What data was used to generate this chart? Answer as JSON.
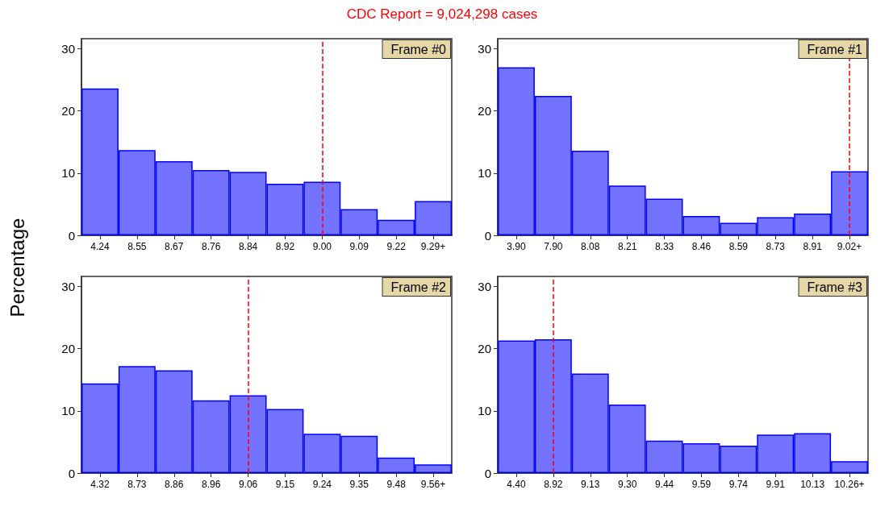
{
  "chart_data": [
    {
      "type": "bar",
      "title": "CDC Report = 9,024,298 cases",
      "ylabel": "Percentage",
      "annotations": [
        "Frame #0"
      ],
      "categories": [
        "4.24",
        "8.55",
        "8.67",
        "8.76",
        "8.84",
        "8.92",
        "9.00",
        "9.09",
        "9.22",
        "9.29+"
      ],
      "series": [
        {
          "color": "#7373ff",
          "values": [
            23.6,
            13.7,
            11.9,
            10.5,
            10.2,
            8.3,
            8.6,
            4.2,
            2.5,
            5.5
          ]
        }
      ],
      "ylim": [
        0,
        31.6
      ],
      "yticks": [
        0,
        10,
        20,
        30
      ],
      "grid": false,
      "ref_lines": [
        {
          "axis": "x",
          "value": "9.00",
          "color": "#ff0000",
          "line_style": "dashed"
        }
      ]
    },
    {
      "type": "bar",
      "annotations": [
        "Frame #1"
      ],
      "categories": [
        "3.90",
        "7.90",
        "8.08",
        "8.21",
        "8.33",
        "8.46",
        "8.59",
        "8.73",
        "8.91",
        "9.02+"
      ],
      "series": [
        {
          "color": "#7373ff",
          "values": [
            27.0,
            22.4,
            13.6,
            8.0,
            5.9,
            3.1,
            2.0,
            2.9,
            3.5,
            10.3
          ]
        }
      ],
      "ylim": [
        0,
        31.6
      ],
      "yticks": [
        0,
        10,
        20,
        30
      ],
      "grid": false,
      "ref_lines": [
        {
          "axis": "x",
          "value": "9.02+",
          "color": "#ff0000",
          "line_style": "dashed"
        }
      ]
    },
    {
      "type": "bar",
      "annotations": [
        "Frame #2"
      ],
      "categories": [
        "4.32",
        "8.73",
        "8.86",
        "8.96",
        "9.06",
        "9.15",
        "9.24",
        "9.35",
        "9.48",
        "9.56+"
      ],
      "series": [
        {
          "color": "#7373ff",
          "values": [
            14.4,
            17.2,
            16.5,
            11.7,
            12.5,
            10.3,
            6.3,
            6.0,
            2.5,
            1.4
          ]
        }
      ],
      "ylim": [
        0,
        31.6
      ],
      "yticks": [
        0,
        10,
        20,
        30
      ],
      "grid": false,
      "ref_lines": [
        {
          "axis": "x",
          "value": "9.06",
          "color": "#ff0000",
          "line_style": "dashed"
        }
      ]
    },
    {
      "type": "bar",
      "annotations": [
        "Frame #3"
      ],
      "categories": [
        "4.40",
        "8.92",
        "9.13",
        "9.30",
        "9.44",
        "9.59",
        "9.74",
        "9.91",
        "10.13",
        "10.26+"
      ],
      "series": [
        {
          "color": "#7373ff",
          "values": [
            21.3,
            21.5,
            16.0,
            11.0,
            5.2,
            4.8,
            4.4,
            6.2,
            6.4,
            1.9
          ]
        }
      ],
      "ylim": [
        0,
        31.6
      ],
      "yticks": [
        0,
        10,
        20,
        30
      ],
      "grid": false,
      "ref_lines": [
        {
          "axis": "x",
          "value": "8.92",
          "color": "#ff0000",
          "line_style": "dashed"
        }
      ]
    }
  ]
}
